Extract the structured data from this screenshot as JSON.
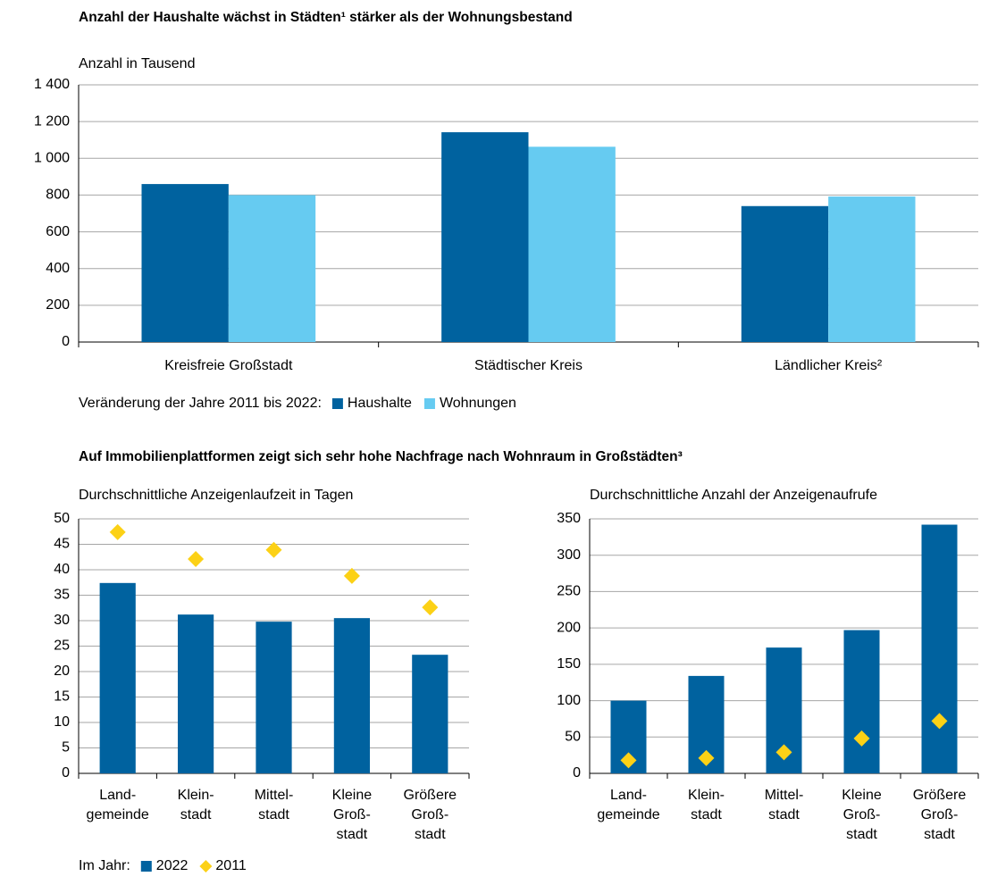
{
  "chart_data": [
    {
      "type": "bar",
      "title": "Anzahl der Haushalte wächst in Städten¹ stärker als der Wohnungsbestand",
      "subtitle": "Anzahl in Tausend",
      "categories": [
        "Kreisfreie Großstadt",
        "Städtischer Kreis",
        "Ländlicher Kreis²"
      ],
      "series": [
        {
          "name": "Haushalte",
          "color": "#00629f",
          "type": "bar",
          "values": [
            860,
            1142,
            740
          ]
        },
        {
          "name": "Wohnungen",
          "color": "#66cbf1",
          "type": "bar",
          "values": [
            800,
            1063,
            792
          ]
        }
      ],
      "legend_title": "Veränderung der Jahre 2011 bis 2022:",
      "ylim": [
        0,
        1400
      ],
      "yticks": [
        0,
        200,
        400,
        600,
        800,
        {
          "value": 1000,
          "label": "1 000"
        },
        {
          "value": 1200,
          "label": "1 200"
        },
        {
          "value": 1400,
          "label": "1 400"
        }
      ],
      "grid": true
    },
    {
      "type": "bar",
      "title": "Auf Immobilienplattformen zeigt sich sehr hohe Nachfrage nach Wohnraum in Großstädten³",
      "subtitle": "Durchschnittliche Anzeigenlaufzeit in Tagen",
      "categories": [
        "Land-\ngemeinde",
        "Klein-\nstadt",
        "Mittel-\nstadt",
        "Kleine\nGroß-\nstadt",
        "Größere\nGroß-\nstadt"
      ],
      "series": [
        {
          "name": "2022",
          "color": "#00629f",
          "type": "bar",
          "values": [
            37.4,
            31.2,
            29.8,
            30.5,
            23.3
          ]
        },
        {
          "name": "2011",
          "color": "#fcd116",
          "type": "scatter",
          "marker": "diamond",
          "values": [
            47.4,
            42.1,
            43.9,
            38.8,
            32.6
          ]
        }
      ],
      "legend_title": "Im Jahr:",
      "ylim": [
        0,
        50
      ],
      "yticks": [
        0,
        5,
        10,
        15,
        20,
        25,
        30,
        35,
        40,
        45,
        50
      ],
      "grid": true
    },
    {
      "type": "bar",
      "subtitle": "Durchschnittliche Anzahl der Anzeigenaufrufe",
      "categories": [
        "Land-\ngemeinde",
        "Klein-\nstadt",
        "Mittel-\nstadt",
        "Kleine\nGroß-\nstadt",
        "Größere\nGroß-\nstadt"
      ],
      "series": [
        {
          "color": "#00629f",
          "type": "bar",
          "values": [
            100,
            134,
            173,
            197,
            342
          ]
        },
        {
          "color": "#fcd116",
          "type": "scatter",
          "marker": "diamond",
          "values": [
            18,
            21,
            29,
            48,
            72
          ]
        }
      ],
      "ylim": [
        0,
        350
      ],
      "yticks": [
        0,
        50,
        100,
        150,
        200,
        250,
        300,
        350
      ],
      "grid": true
    }
  ]
}
